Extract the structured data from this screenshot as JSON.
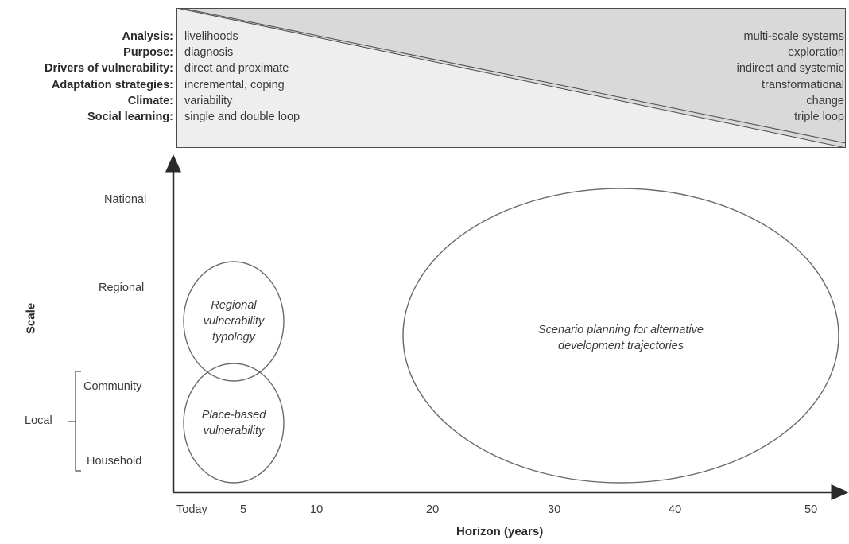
{
  "dimensions": [
    {
      "label": "Analysis:",
      "left": "livelihoods",
      "right": "multi-scale systems"
    },
    {
      "label": "Purpose:",
      "left": "diagnosis",
      "right": "exploration"
    },
    {
      "label": "Drivers of vulnerability:",
      "left": "direct and proximate",
      "right": "indirect and systemic"
    },
    {
      "label": "Adaptation strategies:",
      "left": "incremental, coping",
      "right": "transformational"
    },
    {
      "label": "Climate:",
      "left": "variability",
      "right": "change"
    },
    {
      "label": "Social learning:",
      "left": "single and double loop",
      "right": "triple loop"
    }
  ],
  "y_axis": {
    "title": "Scale",
    "levels": [
      "National",
      "Regional",
      "Community",
      "Household"
    ],
    "group_label": "Local"
  },
  "x_axis": {
    "title": "Horizon (years)",
    "ticks": [
      "Today",
      "5",
      "10",
      "20",
      "30",
      "40",
      "50"
    ]
  },
  "ellipses": {
    "regional": "Regional vulnerability typology",
    "place": "Place-based vulnerability",
    "scenario": "Scenario planning for alternative development trajectories"
  },
  "colors": {
    "shade": "#d9d9d9",
    "stroke": "#4a4a4a"
  }
}
